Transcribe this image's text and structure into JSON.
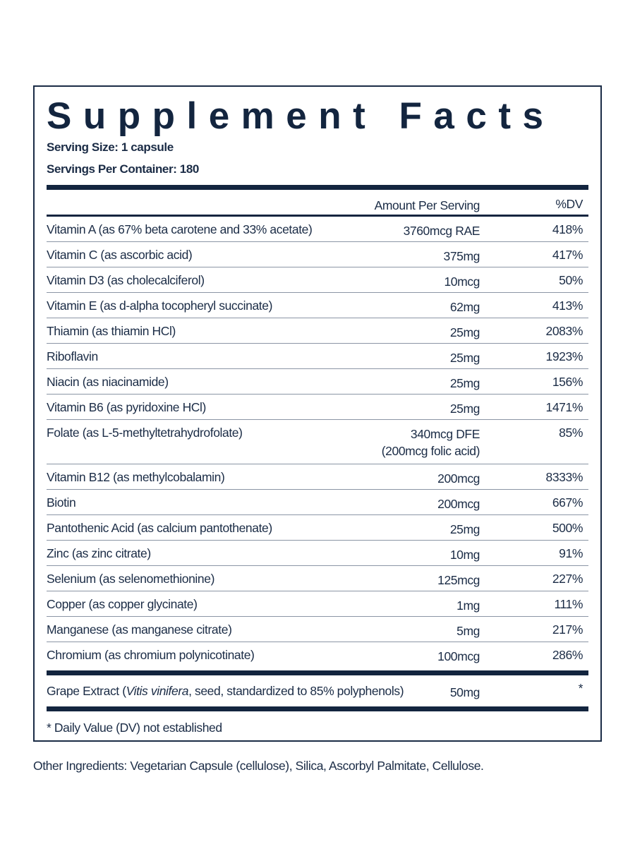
{
  "title": "Supplement Facts",
  "serving_size": "Serving Size: 1 capsule",
  "servings_per_container": "Servings Per Container: 180",
  "header": {
    "amount": "Amount Per Serving",
    "dv": "%DV"
  },
  "rows": [
    {
      "name": "Vitamin A (as 67% beta carotene and 33% acetate)",
      "amount": "3760mcg RAE",
      "dv": "418%"
    },
    {
      "name": "Vitamin C (as ascorbic acid)",
      "amount": "375mg",
      "dv": "417%"
    },
    {
      "name": "Vitamin D3 (as cholecalciferol)",
      "amount": "10mcg",
      "dv": "50%"
    },
    {
      "name": "Vitamin E (as d-alpha tocopheryl succinate)",
      "amount": "62mg",
      "dv": "413%"
    },
    {
      "name": "Thiamin (as thiamin HCl)",
      "amount": "25mg",
      "dv": "2083%"
    },
    {
      "name": "Riboflavin",
      "amount": "25mg",
      "dv": "1923%"
    },
    {
      "name": "Niacin (as niacinamide)",
      "amount": "25mg",
      "dv": "156%"
    },
    {
      "name": "Vitamin B6 (as pyridoxine HCl)",
      "amount": "25mg",
      "dv": "1471%"
    },
    {
      "name": "Folate (as L-5-methyltetrahydrofolate)",
      "amount": "340mcg DFE",
      "amount2": "(200mcg folic acid)",
      "dv": "85%"
    },
    {
      "name": "Vitamin B12 (as methylcobalamin)",
      "amount": "200mcg",
      "dv": "8333%"
    },
    {
      "name": "Biotin",
      "amount": "200mcg",
      "dv": "667%"
    },
    {
      "name": "Pantothenic Acid (as calcium pantothenate)",
      "amount": "25mg",
      "dv": "500%"
    },
    {
      "name": "Zinc (as zinc citrate)",
      "amount": "10mg",
      "dv": "91%"
    },
    {
      "name": "Selenium (as selenomethionine)",
      "amount": "125mcg",
      "dv": "227%"
    },
    {
      "name": "Copper (as copper glycinate)",
      "amount": "1mg",
      "dv": "111%"
    },
    {
      "name": "Manganese (as manganese citrate)",
      "amount": "5mg",
      "dv": "217%"
    },
    {
      "name": "Chromium (as chromium polynicotinate)",
      "amount": "100mcg",
      "dv": "286%"
    }
  ],
  "grape": {
    "name_pre": "Grape Extract (",
    "name_italic": "Vitis vinifera",
    "name_post": ", seed, standardized to 85% polyphenols)",
    "amount": "50mg",
    "dv": "*"
  },
  "footnote": "* Daily Value (DV) not established",
  "other_ingredients": "Other Ingredients: Vegetarian Capsule (cellulose), Silica, Ascorbyl Palmitate, Cellulose."
}
